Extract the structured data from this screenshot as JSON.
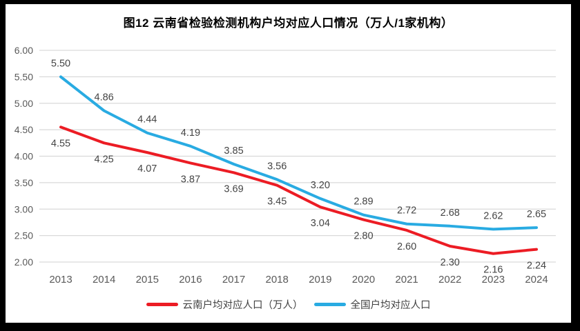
{
  "chart_data": {
    "type": "line",
    "title": "图12  云南省检验检测机构户均对应人口情况（万人/1家机构）",
    "categories": [
      "2013",
      "2014",
      "2015",
      "2016",
      "2017",
      "2018",
      "2019",
      "2020",
      "2021",
      "2022",
      "2023",
      "2024"
    ],
    "series": [
      {
        "name": "云南户均对应人口（万人）",
        "values": [
          4.55,
          4.25,
          4.07,
          3.87,
          3.69,
          3.45,
          3.04,
          2.8,
          2.6,
          2.3,
          2.16,
          2.24
        ],
        "color": "#EC1C24",
        "label_position": "below"
      },
      {
        "name": "全国户均对应人口",
        "values": [
          5.5,
          4.86,
          4.44,
          4.19,
          3.85,
          3.56,
          3.2,
          2.89,
          2.72,
          2.68,
          2.62,
          2.65
        ],
        "color": "#29ABE2",
        "label_position": "above"
      }
    ],
    "ylim": [
      2.0,
      6.0
    ],
    "ytick_step": 0.5,
    "grid": true,
    "legend_position": "bottom",
    "xlabel": "",
    "ylabel": ""
  },
  "style": {
    "frame_border_color": "#000000",
    "background_color": "#ffffff",
    "gridline_color": "#D9D9D9",
    "tick_label_color": "#595959",
    "data_label_color": "#444444",
    "title_color": "#000000",
    "line_width": 4
  }
}
